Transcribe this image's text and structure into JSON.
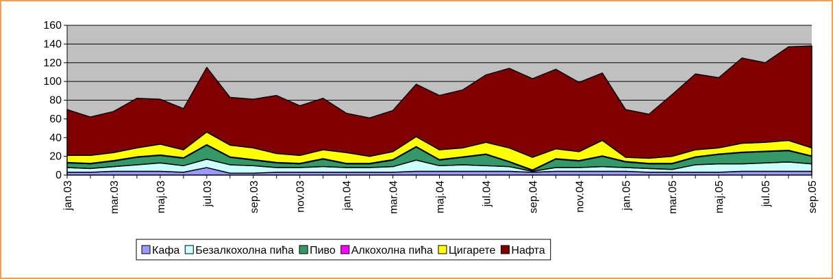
{
  "chart_data": {
    "type": "stacked-area",
    "categories": [
      "jan.03",
      null,
      "mar.03",
      null,
      "maj.03",
      null,
      "jul.03",
      null,
      "sep.03",
      null,
      "nov.03",
      null,
      "jan.04",
      null,
      "mar.04",
      null,
      "maj.04",
      null,
      "jul.04",
      null,
      "sep.04",
      null,
      "nov.04",
      null,
      "jan.05",
      null,
      "mar.05",
      null,
      "maj.05",
      null,
      "jul.05",
      null,
      "sep.05"
    ],
    "series": [
      {
        "name": "Кафа",
        "color": "#9999ff",
        "values": [
          3,
          3,
          4,
          4,
          4,
          3,
          8,
          2,
          2,
          3,
          3,
          3,
          3,
          3,
          3,
          4,
          4,
          4,
          4,
          4,
          3,
          4,
          4,
          4,
          4,
          3,
          3,
          3,
          3,
          4,
          4,
          4,
          4
        ]
      },
      {
        "name": "Безалкохолна пића",
        "color": "#ccffff",
        "values": [
          5,
          4,
          5,
          7,
          9,
          7,
          9,
          9,
          8,
          5,
          5,
          6,
          5,
          5,
          6,
          12,
          6,
          7,
          6,
          5,
          1,
          4,
          4,
          5,
          4,
          4,
          3,
          8,
          9,
          8,
          9,
          10,
          8
        ]
      },
      {
        "name": "Пиво",
        "color": "#339966",
        "values": [
          5,
          5,
          6,
          8,
          8,
          8,
          15,
          8,
          6,
          5,
          4,
          8,
          4,
          4,
          7,
          14,
          6,
          8,
          12,
          5,
          1,
          9,
          7,
          11,
          6,
          5,
          6,
          8,
          10,
          12,
          12,
          12,
          8
        ]
      },
      {
        "name": "Алкохолна пића",
        "color": "#ff00ff",
        "values": [
          0.5,
          0.5,
          0.5,
          0.5,
          0.5,
          0.5,
          0.5,
          0.5,
          0.5,
          0.5,
          0.5,
          0.5,
          0.5,
          0.5,
          0.5,
          0.5,
          0.5,
          0.5,
          0.5,
          0.5,
          0.5,
          0.5,
          0.5,
          0.5,
          0.5,
          0.5,
          0.5,
          0.5,
          0.5,
          0.5,
          0.5,
          0.5,
          0.5
        ]
      },
      {
        "name": "Цигарете",
        "color": "#ffff00",
        "values": [
          7.5,
          8.5,
          8.5,
          9.5,
          11.5,
          8.5,
          13.5,
          12.5,
          12.5,
          9.5,
          8.5,
          9.5,
          11.5,
          7.5,
          8.5,
          10.5,
          10.5,
          9.5,
          12.5,
          14.5,
          13.5,
          10.5,
          9.5,
          16.5,
          4.5,
          5.5,
          7.5,
          7.5,
          6.5,
          9.5,
          9.5,
          10.5,
          8.5
        ]
      },
      {
        "name": "Нафта",
        "color": "#800000",
        "values": [
          49,
          41,
          44,
          53,
          48,
          44,
          69,
          51,
          52,
          62,
          53,
          55,
          42,
          41,
          44,
          56,
          58,
          62,
          72,
          85,
          84,
          85,
          74,
          72,
          51,
          47,
          66,
          81,
          75,
          91,
          85,
          100,
          109
        ]
      }
    ],
    "ylim": [
      0,
      160
    ],
    "yticks": [
      0,
      20,
      40,
      60,
      80,
      100,
      120,
      140,
      160
    ],
    "grid": true,
    "plot_background": "#c0c0c0",
    "legend": "bottom"
  }
}
